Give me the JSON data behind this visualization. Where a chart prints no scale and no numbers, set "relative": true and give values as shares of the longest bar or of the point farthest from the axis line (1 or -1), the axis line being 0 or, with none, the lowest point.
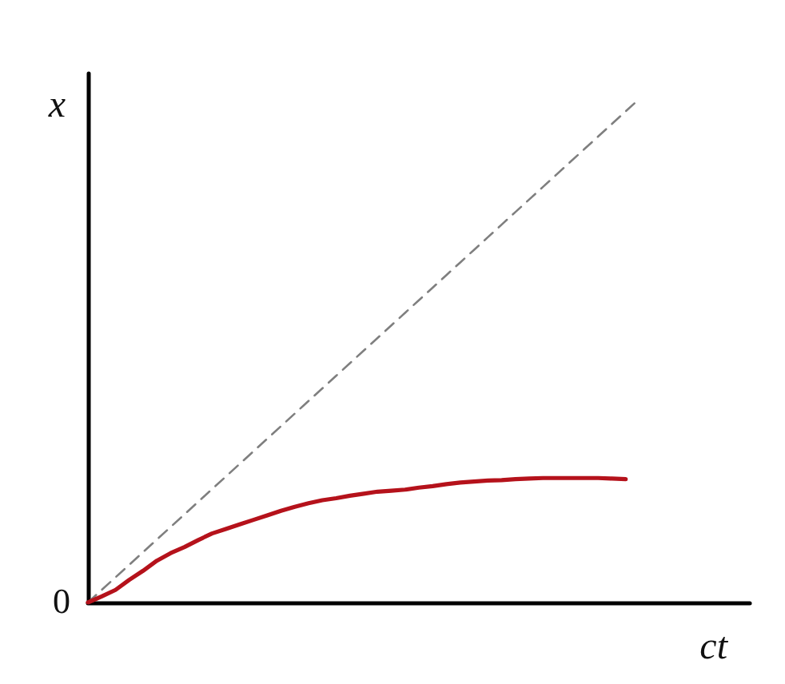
{
  "chart_data": {
    "type": "line",
    "relative": true,
    "xlabel": "ct",
    "ylabel": "x",
    "annotations": [
      "0"
    ],
    "marker": "none",
    "categories": [
      null,
      null,
      null,
      null,
      null,
      null,
      null,
      null,
      null,
      null,
      null,
      null,
      null,
      null,
      null,
      null,
      null,
      null,
      null,
      null,
      null,
      null,
      null,
      null,
      null,
      null,
      null,
      null,
      null,
      null,
      null,
      null,
      null,
      null,
      null,
      null,
      null,
      null,
      null,
      null,
      null,
      null,
      null,
      null,
      null,
      null,
      null,
      null,
      null
    ],
    "series": [
      {
        "color": "#7f7f7f",
        "line_style": "dashed",
        "values": [
          0,
          0.025,
          0.05,
          0.075,
          0.1,
          0.125,
          0.15,
          0.175,
          0.2,
          0.225,
          0.25,
          0.275,
          0.3,
          0.325,
          0.35,
          0.375,
          0.4,
          0.425,
          0.45,
          0.475,
          0.5,
          0.525,
          0.55,
          0.575,
          0.6,
          0.625,
          0.65,
          0.675,
          0.7,
          0.725,
          0.75,
          0.775,
          0.8,
          0.825,
          0.85,
          0.875,
          0.9,
          0.925,
          0.95,
          0.975,
          1,
          null,
          null,
          null,
          null,
          null,
          null,
          null,
          null
        ]
      },
      {
        "color": "#b5121b",
        "line_style": "solid",
        "values": [
          0,
          0.012,
          0.025,
          0.045,
          0.063,
          0.083,
          0.098,
          0.11,
          0.124,
          0.137,
          0.146,
          0.155,
          0.164,
          0.173,
          0.182,
          0.19,
          0.197,
          0.203,
          0.207,
          0.212,
          0.216,
          0.22,
          0.222,
          0.224,
          0.228,
          0.231,
          0.235,
          0.238,
          0.24,
          0.242,
          0.243,
          0.245,
          0.246,
          0.247,
          0.247,
          0.247,
          0.247,
          0.247,
          0.246,
          0.245,
          null,
          null,
          null,
          null,
          null,
          null,
          null,
          null,
          null
        ]
      }
    ]
  }
}
